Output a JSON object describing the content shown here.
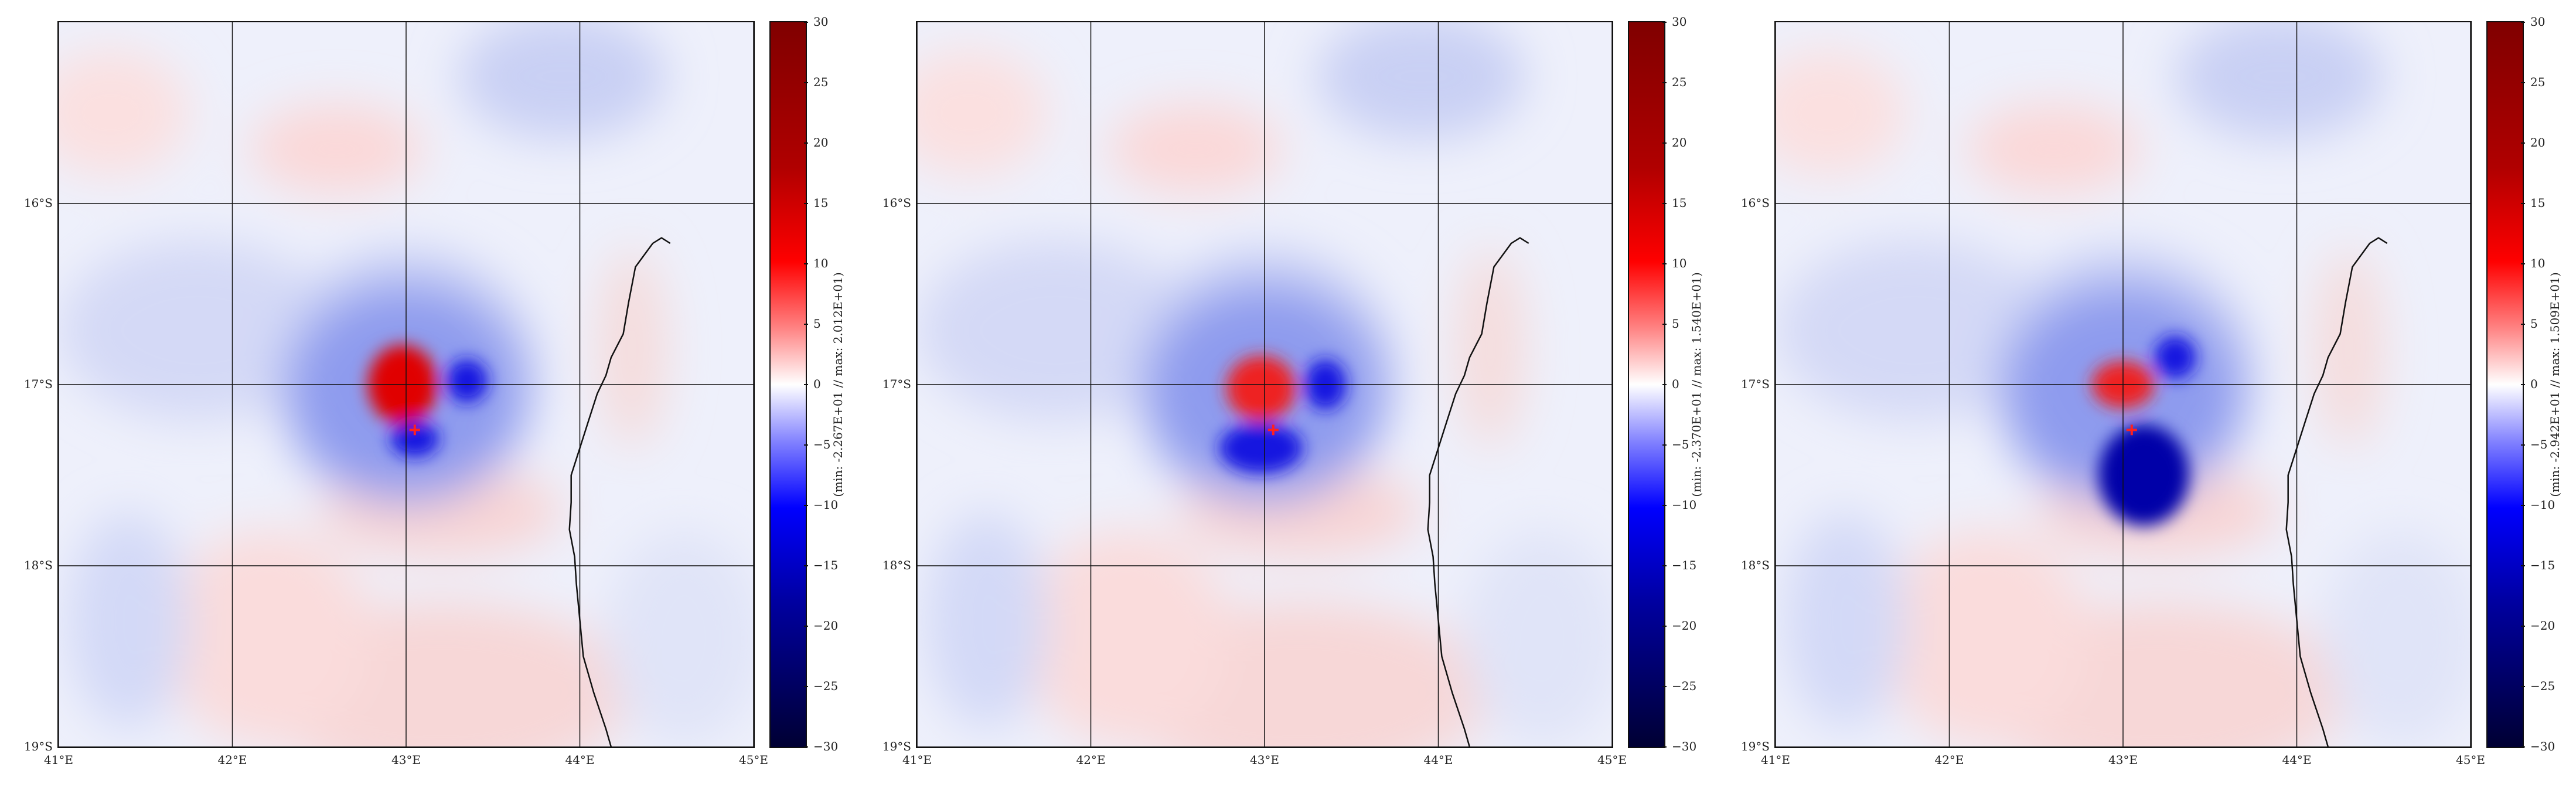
{
  "panels": [
    {
      "cbar_label": "(min: -2.267E+01 // max: 2.012E+01)",
      "center_marker": {
        "lon": 43.05,
        "lat": -17.25
      },
      "features": [
        {
          "type": "pos",
          "lon": 42.98,
          "lat": -17.0,
          "rx": 0.2,
          "ry": 0.22,
          "strength": 1.0
        },
        {
          "type": "neg",
          "lon": 43.05,
          "lat": -17.3,
          "rx": 0.14,
          "ry": 0.1,
          "strength": 0.85
        },
        {
          "type": "neg",
          "lon": 43.35,
          "lat": -16.98,
          "rx": 0.12,
          "ry": 0.12,
          "strength": 0.8
        }
      ]
    },
    {
      "cbar_label": "(min: -2.370E+01 // max: 1.540E+01)",
      "center_marker": {
        "lon": 43.05,
        "lat": -17.25
      },
      "features": [
        {
          "type": "pos",
          "lon": 42.98,
          "lat": -17.02,
          "rx": 0.2,
          "ry": 0.18,
          "strength": 0.9
        },
        {
          "type": "neg",
          "lon": 42.98,
          "lat": -17.35,
          "rx": 0.24,
          "ry": 0.14,
          "strength": 0.85
        },
        {
          "type": "neg",
          "lon": 43.35,
          "lat": -17.0,
          "rx": 0.12,
          "ry": 0.14,
          "strength": 0.8
        }
      ]
    },
    {
      "cbar_label": "(min: -2.942E+01 // max: 1.509E+01)",
      "center_marker": {
        "lon": 43.05,
        "lat": -17.25
      },
      "features": [
        {
          "type": "pos",
          "lon": 43.0,
          "lat": -17.0,
          "rx": 0.18,
          "ry": 0.13,
          "strength": 0.85
        },
        {
          "type": "neg",
          "lon": 43.12,
          "lat": -17.5,
          "rx": 0.26,
          "ry": 0.28,
          "strength": 1.0
        },
        {
          "type": "neg",
          "lon": 43.3,
          "lat": -16.85,
          "rx": 0.12,
          "ry": 0.12,
          "strength": 0.7
        }
      ]
    }
  ],
  "map_extent": {
    "lon_min": 41,
    "lon_max": 45,
    "lat_min": -19,
    "lat_max": -15
  },
  "lat_ticks": [
    {
      "value": -16,
      "label": "16°S"
    },
    {
      "value": -17,
      "label": "17°S"
    },
    {
      "value": -18,
      "label": "18°S"
    },
    {
      "value": -19,
      "label": "19°S"
    }
  ],
  "lon_ticks": [
    {
      "value": 41,
      "label": "41°E"
    },
    {
      "value": 42,
      "label": "42°E"
    },
    {
      "value": 43,
      "label": "43°E"
    },
    {
      "value": 44,
      "label": "44°E"
    },
    {
      "value": 45,
      "label": "45°E"
    }
  ],
  "colorbar": {
    "min": -30,
    "max": 30,
    "ticks": [
      "30",
      "25",
      "20",
      "15",
      "10",
      "5",
      "0",
      "−5",
      "−10",
      "−15",
      "−20",
      "−25",
      "−30"
    ],
    "tick_values": [
      30,
      25,
      20,
      15,
      10,
      5,
      0,
      -5,
      -10,
      -15,
      -20,
      -25,
      -30
    ],
    "colormap": "bwr"
  },
  "coastline": [
    [
      44.52,
      -16.22
    ],
    [
      44.47,
      -16.19
    ],
    [
      44.42,
      -16.22
    ],
    [
      44.32,
      -16.35
    ],
    [
      44.28,
      -16.55
    ],
    [
      44.25,
      -16.72
    ],
    [
      44.18,
      -16.85
    ],
    [
      44.15,
      -16.95
    ],
    [
      44.1,
      -17.05
    ],
    [
      44.05,
      -17.2
    ],
    [
      44.0,
      -17.35
    ],
    [
      43.95,
      -17.5
    ],
    [
      43.95,
      -17.65
    ],
    [
      43.94,
      -17.8
    ],
    [
      43.97,
      -17.95
    ],
    [
      43.98,
      -18.1
    ],
    [
      44.0,
      -18.3
    ],
    [
      44.02,
      -18.5
    ],
    [
      44.08,
      -18.7
    ],
    [
      44.15,
      -18.9
    ],
    [
      44.18,
      -19.0
    ]
  ],
  "colors": {
    "negative": "#0000ff",
    "positive": "#ff0000",
    "neutral": "#ffffff",
    "marker": "#ff2020",
    "grid": "#111111"
  }
}
